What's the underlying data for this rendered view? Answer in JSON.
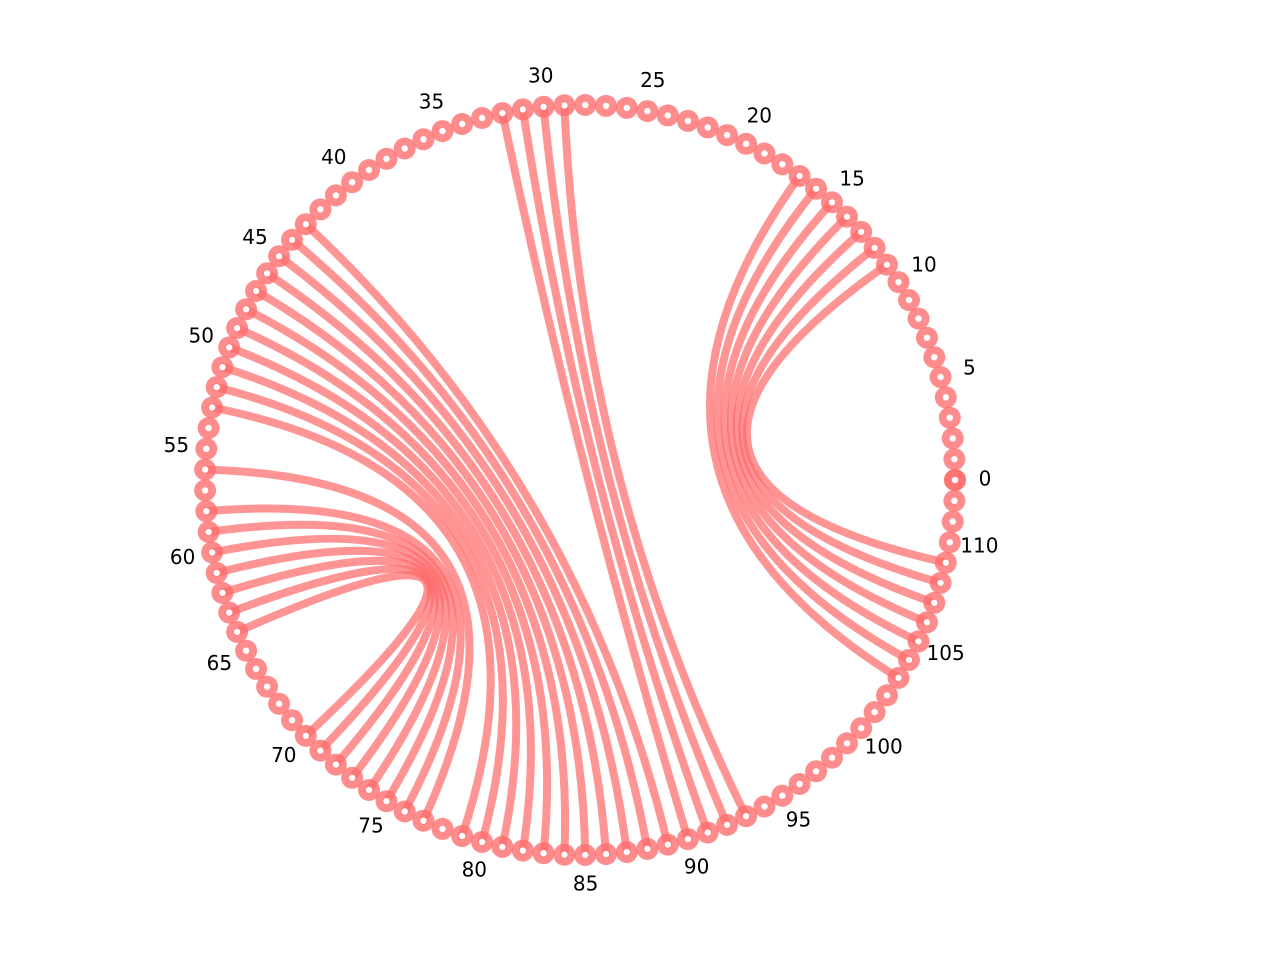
{
  "diagram": {
    "type": "arc-diagram-circular",
    "node_count": 114,
    "node_color": "#ff6b6b",
    "node_center_color": "#ffffff",
    "edge_color": "#ff6b6b",
    "tick_labels": [
      "0",
      "5",
      "10",
      "15",
      "20",
      "25",
      "30",
      "35",
      "40",
      "45",
      "50",
      "55",
      "60",
      "65",
      "70",
      "75",
      "80",
      "85",
      "90",
      "95",
      "100",
      "105",
      "110"
    ],
    "edges": [
      [
        11,
        109
      ],
      [
        12,
        108
      ],
      [
        13,
        107
      ],
      [
        14,
        106
      ],
      [
        15,
        105
      ],
      [
        16,
        104
      ],
      [
        17,
        103
      ],
      [
        29,
        93
      ],
      [
        30,
        92
      ],
      [
        31,
        91
      ],
      [
        32,
        90
      ],
      [
        43,
        89
      ],
      [
        44,
        88
      ],
      [
        45,
        87
      ],
      [
        46,
        86
      ],
      [
        47,
        85
      ],
      [
        48,
        84
      ],
      [
        49,
        83
      ],
      [
        50,
        82
      ],
      [
        51,
        81
      ],
      [
        52,
        80
      ],
      [
        53,
        79
      ],
      [
        56,
        77
      ],
      [
        58,
        76
      ],
      [
        59,
        75
      ],
      [
        60,
        74
      ],
      [
        61,
        73
      ],
      [
        62,
        72
      ],
      [
        63,
        71
      ],
      [
        64,
        70
      ]
    ]
  }
}
